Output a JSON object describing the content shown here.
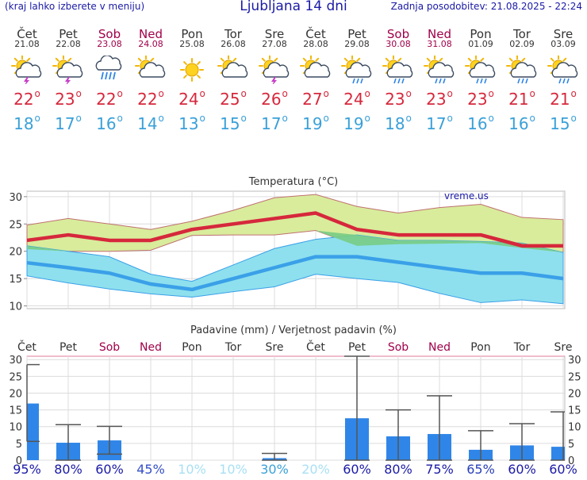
{
  "header": {
    "menu_hint": "(kraj lahko izberete v meniju)",
    "title": "Ljubljana 14 dni",
    "updated": "Zadnja posodobitev: 21.08.2025 - 22:24"
  },
  "colors": {
    "max_line": "#d6283c",
    "min_line": "#3aa0e8",
    "max_band": "#d8ec9c",
    "min_band": "#8ee0ee",
    "overlap_band": "#78cc84",
    "precip_bar": "#2f86e8",
    "weekend": "#a0004a"
  },
  "forecast": [
    {
      "day": "Čet",
      "date": "21.08",
      "icon": "sun-cloud-thunder-icon",
      "max": "22",
      "min": "18",
      "weekend": false
    },
    {
      "day": "Pet",
      "date": "22.08",
      "icon": "sun-cloud-thunder-icon",
      "max": "23",
      "min": "17",
      "weekend": false
    },
    {
      "day": "Sob",
      "date": "23.08",
      "icon": "cloud-rain-icon",
      "max": "22",
      "min": "16",
      "weekend": true
    },
    {
      "day": "Ned",
      "date": "24.08",
      "icon": "sun-cloud-icon",
      "max": "22",
      "min": "14",
      "weekend": true
    },
    {
      "day": "Pon",
      "date": "25.08",
      "icon": "sun-icon",
      "max": "24",
      "min": "13",
      "weekend": false
    },
    {
      "day": "Tor",
      "date": "26.08",
      "icon": "sun-cloud-icon",
      "max": "25",
      "min": "15",
      "weekend": false
    },
    {
      "day": "Sre",
      "date": "27.08",
      "icon": "sun-cloud-thunder-icon",
      "max": "26",
      "min": "17",
      "weekend": false
    },
    {
      "day": "Čet",
      "date": "28.08",
      "icon": "sun-cloud-icon",
      "max": "27",
      "min": "19",
      "weekend": false
    },
    {
      "day": "Pet",
      "date": "29.08",
      "icon": "sun-cloud-rain-icon",
      "max": "24",
      "min": "19",
      "weekend": false
    },
    {
      "day": "Sob",
      "date": "30.08",
      "icon": "sun-cloud-rain-icon",
      "max": "23",
      "min": "18",
      "weekend": true
    },
    {
      "day": "Ned",
      "date": "31.08",
      "icon": "sun-cloud-rain-icon",
      "max": "23",
      "min": "17",
      "weekend": true
    },
    {
      "day": "Pon",
      "date": "01.09",
      "icon": "sun-cloud-rain-icon",
      "max": "23",
      "min": "16",
      "weekend": false
    },
    {
      "day": "Tor",
      "date": "02.09",
      "icon": "sun-cloud-rain-icon",
      "max": "21",
      "min": "16",
      "weekend": false
    },
    {
      "day": "Sre",
      "date": "03.09",
      "icon": "sun-cloud-rain-icon",
      "max": "21",
      "min": "15",
      "weekend": false
    }
  ],
  "chart_data": [
    {
      "type": "line",
      "title": "Temperatura (°C)",
      "watermark": "vreme.us",
      "x": [
        "21.08",
        "22.08",
        "23.08",
        "24.08",
        "25.08",
        "26.08",
        "27.08",
        "28.08",
        "29.08",
        "30.08",
        "31.08",
        "01.09",
        "02.09",
        "03.09"
      ],
      "ylim": [
        9.5,
        31
      ],
      "yticks": [
        10,
        15,
        20,
        25,
        30
      ],
      "grid": true,
      "series": [
        {
          "role": "max",
          "values": [
            22,
            23,
            22,
            22,
            24,
            25,
            26,
            27,
            24,
            23,
            23,
            23,
            21,
            21
          ]
        },
        {
          "role": "max_upper",
          "values": [
            24.8,
            26,
            25,
            24,
            25.5,
            27.5,
            29.8,
            30.4,
            28.2,
            27,
            28,
            28.6,
            26.2,
            25.8
          ]
        },
        {
          "role": "max_lower",
          "values": [
            20.4,
            20,
            20,
            20.2,
            22.9,
            23,
            23,
            23.8,
            21,
            21.3,
            21.4,
            21.5,
            20.6,
            19.8
          ]
        },
        {
          "role": "min",
          "values": [
            17.9,
            17,
            16,
            14,
            13,
            15,
            17,
            19,
            19,
            18,
            17,
            16,
            16,
            15
          ]
        },
        {
          "role": "min_upper",
          "values": [
            21,
            20,
            19,
            15.8,
            14.5,
            17.5,
            20.5,
            22.2,
            23,
            22,
            22,
            21.8,
            21.5,
            19.8
          ]
        },
        {
          "role": "min_lower",
          "values": [
            15.5,
            14.2,
            13.1,
            12.2,
            11.6,
            12.6,
            13.5,
            15.8,
            15,
            14.3,
            12.3,
            10.6,
            11.1,
            10.4
          ]
        }
      ]
    },
    {
      "type": "bar",
      "title": "Padavine (mm) / Verjetnost padavin (%)",
      "categories": [
        "Čet",
        "Pet",
        "Sob",
        "Ned",
        "Pon",
        "Tor",
        "Sre",
        "Čet",
        "Pet",
        "Sob",
        "Ned",
        "Pon",
        "Tor",
        "Sre"
      ],
      "weekend": [
        false,
        false,
        true,
        true,
        false,
        false,
        false,
        false,
        false,
        true,
        true,
        false,
        false,
        false
      ],
      "ylim": [
        0,
        31
      ],
      "yticks": [
        0,
        5,
        10,
        15,
        20,
        25,
        30
      ],
      "values": [
        16.9,
        5.2,
        5.9,
        0,
        0,
        0,
        0.6,
        0,
        12.5,
        7.1,
        7.8,
        3.1,
        4.4,
        4.0
      ],
      "err_low": [
        5.6,
        0,
        1.8,
        0,
        0,
        0,
        0,
        0,
        0,
        0,
        0,
        0,
        0,
        0
      ],
      "err_high": [
        28.5,
        10.6,
        10.1,
        0,
        0,
        0,
        2,
        0,
        31,
        15,
        19.2,
        8.8,
        10.9,
        14.4
      ],
      "probability": [
        "95%",
        "80%",
        "60%",
        "45%",
        "10%",
        "10%",
        "30%",
        "20%",
        "60%",
        "80%",
        "75%",
        "65%",
        "60%",
        "60%"
      ],
      "probability_colors": [
        "#1a1aa6",
        "#1a1aa6",
        "#1a1aa6",
        "#3550c8",
        "#a8e0f4",
        "#a8e0f4",
        "#3aa0d8",
        "#a8e0f4",
        "#1a1aa6",
        "#1a1aa6",
        "#1a1aa6",
        "#2a40b8",
        "#1a1aa6",
        "#1a1aa6"
      ]
    }
  ]
}
